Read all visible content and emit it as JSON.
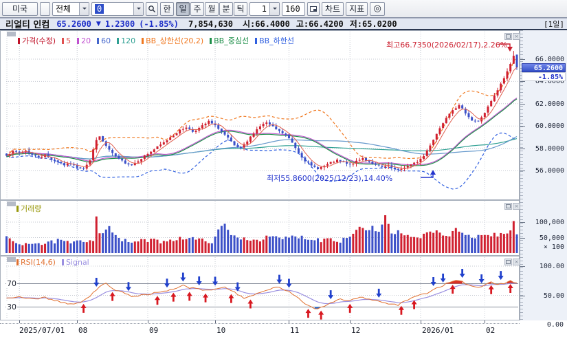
{
  "toolbar": {
    "market": "미국",
    "scope": "전체",
    "code_value": "0",
    "lang": "한",
    "period_tabs": [
      {
        "label": "일",
        "selected": true
      },
      {
        "label": "주",
        "selected": false
      },
      {
        "label": "월",
        "selected": false
      },
      {
        "label": "분",
        "selected": false
      },
      {
        "label": "틱",
        "selected": false
      }
    ],
    "interval": "1",
    "bar_count": "160",
    "chart": "차트",
    "indicator": "지표",
    "gear_icon": "◎"
  },
  "info_bar": {
    "name": "리얼티 인컴",
    "price": "65.2600",
    "down_arrow": "▼",
    "change": "1.2300",
    "change_pct": "(-1.85%)",
    "volume": "7,854,630",
    "open": "시:66.4000",
    "high": "고:66.4200",
    "low": "저:65.0200",
    "period_badge": "[1일]"
  },
  "main_pane": {
    "legend": [
      {
        "label": "가격(수정)",
        "color": "#c01228"
      },
      {
        "label": "5",
        "color": "#e05050"
      },
      {
        "label": "20",
        "color": "#c050d0"
      },
      {
        "label": "60",
        "color": "#4466cc"
      },
      {
        "label": "120",
        "color": "#2fa093"
      },
      {
        "label": "BB_상한선(20,2)",
        "color": "#f07820"
      },
      {
        "label": "BB_중심선",
        "color": "#1f8f4a"
      },
      {
        "label": "BB_하한선",
        "color": "#2f5fe0"
      }
    ],
    "high_annotation": "최고66.7350(2026/02/17),2.26%",
    "low_annotation": "최저55.8600(2025/12/23),14.40%",
    "price_marker": "65.2600",
    "pct_marker": "-1.85%",
    "y_ticks": [
      "66.0000",
      "64.0000",
      "62.0000",
      "60.0000",
      "58.0000",
      "56.0000"
    ]
  },
  "volume_pane": {
    "legend": [
      {
        "label": "거래량",
        "color": "#98980a"
      }
    ],
    "y_ticks": [
      "100,000",
      "50,000"
    ],
    "multiplier": "× 100"
  },
  "rsi_pane": {
    "legend": [
      {
        "label": "RSI(14,6)",
        "color": "#e07030"
      },
      {
        "label": "Signal",
        "color": "#9a8fe0"
      }
    ],
    "level_labels": [
      "70",
      "30"
    ],
    "y_ticks": [
      "100.00",
      "50.00",
      "0.00"
    ]
  },
  "chart_data": {
    "type": "candlestick",
    "title": "리얼티 인컴 일봉",
    "bar_count": 160,
    "x_ticks": [
      {
        "i": 4,
        "label": "2025/07/01"
      },
      {
        "i": 22,
        "label": "08"
      },
      {
        "i": 44,
        "label": "09"
      },
      {
        "i": 65,
        "label": "10"
      },
      {
        "i": 88,
        "label": "11"
      },
      {
        "i": 107,
        "label": "12"
      },
      {
        "i": 129,
        "label": "2026/01"
      },
      {
        "i": 149,
        "label": "02"
      }
    ],
    "price_axis_range": [
      55.2,
      67.4
    ],
    "price_gridlines": [
      66,
      64,
      62,
      60,
      58,
      56
    ],
    "close_keypoints": [
      [
        0,
        57.4
      ],
      [
        2,
        57.7
      ],
      [
        4,
        57.6
      ],
      [
        6,
        57.8
      ],
      [
        8,
        57.4
      ],
      [
        10,
        57.2
      ],
      [
        12,
        57.4
      ],
      [
        14,
        57.0
      ],
      [
        16,
        56.8
      ],
      [
        18,
        56.5
      ],
      [
        20,
        56.6
      ],
      [
        22,
        56.3
      ],
      [
        24,
        56.2
      ],
      [
        26,
        56.9
      ],
      [
        28,
        58.8
      ],
      [
        29,
        59.0
      ],
      [
        31,
        58.2
      ],
      [
        33,
        57.5
      ],
      [
        35,
        57.0
      ],
      [
        37,
        56.7
      ],
      [
        39,
        56.5
      ],
      [
        41,
        56.9
      ],
      [
        43,
        57.3
      ],
      [
        45,
        57.7
      ],
      [
        47,
        58.1
      ],
      [
        49,
        58.5
      ],
      [
        51,
        59.0
      ],
      [
        53,
        59.4
      ],
      [
        54,
        59.6
      ],
      [
        56,
        59.9
      ],
      [
        58,
        59.5
      ],
      [
        60,
        59.8
      ],
      [
        62,
        60.2
      ],
      [
        63,
        60.4
      ],
      [
        66,
        59.8
      ],
      [
        69,
        58.9
      ],
      [
        71,
        58.2
      ],
      [
        73,
        58.0
      ],
      [
        75,
        58.6
      ],
      [
        77,
        59.4
      ],
      [
        79,
        60.0
      ],
      [
        81,
        60.3
      ],
      [
        83,
        59.9
      ],
      [
        85,
        59.5
      ],
      [
        87,
        59.2
      ],
      [
        89,
        58.5
      ],
      [
        91,
        57.6
      ],
      [
        93,
        56.9
      ],
      [
        95,
        56.4
      ],
      [
        97,
        56.2
      ],
      [
        99,
        56.4
      ],
      [
        101,
        56.7
      ],
      [
        103,
        56.9
      ],
      [
        105,
        56.7
      ],
      [
        107,
        56.5
      ],
      [
        109,
        56.8
      ],
      [
        111,
        57.1
      ],
      [
        113,
        56.8
      ],
      [
        115,
        56.5
      ],
      [
        117,
        56.3
      ],
      [
        119,
        56.4
      ],
      [
        121,
        56.1
      ],
      [
        122,
        56.0
      ],
      [
        124,
        56.3
      ],
      [
        126,
        56.5
      ],
      [
        128,
        56.8
      ],
      [
        130,
        57.3
      ],
      [
        131,
        57.8
      ],
      [
        133,
        58.8
      ],
      [
        135,
        59.8
      ],
      [
        137,
        60.8
      ],
      [
        139,
        61.5
      ],
      [
        141,
        61.8
      ],
      [
        143,
        61.2
      ],
      [
        145,
        60.5
      ],
      [
        147,
        60.4
      ],
      [
        149,
        61.2
      ],
      [
        151,
        62.2
      ],
      [
        153,
        63.2
      ],
      [
        155,
        64.3
      ],
      [
        156,
        64.9
      ],
      [
        157,
        65.6
      ],
      [
        158,
        66.3
      ],
      [
        159,
        65.26
      ]
    ],
    "ohlc_overrides": [
      {
        "i": 122,
        "low": 55.86
      },
      {
        "i": 158,
        "high": 66.735
      },
      {
        "i": 159,
        "open": 66.4,
        "high": 66.42,
        "low": 65.02,
        "close": 65.26
      }
    ],
    "high_point": {
      "i": 158,
      "price": 66.735,
      "date": "2026/02/17",
      "pct": "2.26%"
    },
    "low_point": {
      "i": 122,
      "price": 55.86,
      "date": "2025/12/23",
      "pct": "14.40%"
    },
    "last_bar": {
      "open": 66.4,
      "high": 66.42,
      "low": 65.02,
      "close": 65.26,
      "change": -1.23,
      "change_pct": -1.85,
      "volume": 7854630
    },
    "moving_averages": [
      5,
      20,
      60,
      120
    ],
    "bollinger": {
      "period": 20,
      "mult": 2
    },
    "volume_gridlines": [
      50000,
      100000
    ],
    "volume_multiplier": 100,
    "volume_keypoints": [
      [
        0,
        48000
      ],
      [
        4,
        30000
      ],
      [
        8,
        35000
      ],
      [
        12,
        28000
      ],
      [
        16,
        40000
      ],
      [
        20,
        32000
      ],
      [
        24,
        38000
      ],
      [
        27,
        45000
      ],
      [
        28,
        125000
      ],
      [
        29,
        60000
      ],
      [
        31,
        80000
      ],
      [
        32,
        88000
      ],
      [
        34,
        52000
      ],
      [
        36,
        40000
      ],
      [
        40,
        36000
      ],
      [
        44,
        42000
      ],
      [
        48,
        38000
      ],
      [
        52,
        45000
      ],
      [
        56,
        50000
      ],
      [
        60,
        42000
      ],
      [
        64,
        38000
      ],
      [
        66,
        70000
      ],
      [
        68,
        95000
      ],
      [
        70,
        55000
      ],
      [
        74,
        48000
      ],
      [
        78,
        42000
      ],
      [
        82,
        52000
      ],
      [
        86,
        46000
      ],
      [
        90,
        55000
      ],
      [
        94,
        48000
      ],
      [
        98,
        42000
      ],
      [
        100,
        50000
      ],
      [
        102,
        44000
      ],
      [
        104,
        40000
      ],
      [
        106,
        52000
      ],
      [
        108,
        60000
      ],
      [
        110,
        88000
      ],
      [
        112,
        75000
      ],
      [
        114,
        82000
      ],
      [
        116,
        65000
      ],
      [
        118,
        120000
      ],
      [
        120,
        58000
      ],
      [
        122,
        70000
      ],
      [
        124,
        55000
      ],
      [
        126,
        48000
      ],
      [
        128,
        52000
      ],
      [
        130,
        58000
      ],
      [
        132,
        65000
      ],
      [
        134,
        72000
      ],
      [
        136,
        60000
      ],
      [
        138,
        55000
      ],
      [
        140,
        75000
      ],
      [
        142,
        62000
      ],
      [
        144,
        58000
      ],
      [
        146,
        52000
      ],
      [
        148,
        60000
      ],
      [
        150,
        55000
      ],
      [
        152,
        62000
      ],
      [
        154,
        58000
      ],
      [
        156,
        65000
      ],
      [
        157,
        72000
      ],
      [
        158,
        100000
      ],
      [
        159,
        62000
      ]
    ],
    "rsi_levels": [
      70,
      30
    ],
    "rsi_axis_range": [
      0,
      100
    ],
    "rsi_gridlines": [
      100,
      50
    ],
    "rsi_keypoints": [
      [
        0,
        45
      ],
      [
        4,
        48
      ],
      [
        8,
        44
      ],
      [
        12,
        46
      ],
      [
        16,
        40
      ],
      [
        20,
        34
      ],
      [
        23,
        38
      ],
      [
        26,
        48
      ],
      [
        29,
        66
      ],
      [
        31,
        72
      ],
      [
        33,
        62
      ],
      [
        36,
        55
      ],
      [
        38,
        50
      ],
      [
        40,
        48
      ],
      [
        44,
        52
      ],
      [
        48,
        55
      ],
      [
        52,
        60
      ],
      [
        55,
        67
      ],
      [
        57,
        63
      ],
      [
        60,
        60
      ],
      [
        63,
        58
      ],
      [
        66,
        62
      ],
      [
        68,
        64
      ],
      [
        71,
        55
      ],
      [
        74,
        46
      ],
      [
        77,
        50
      ],
      [
        80,
        56
      ],
      [
        83,
        62
      ],
      [
        85,
        64
      ],
      [
        88,
        56
      ],
      [
        90,
        48
      ],
      [
        93,
        36
      ],
      [
        95,
        30
      ],
      [
        97,
        27
      ],
      [
        99,
        32
      ],
      [
        102,
        40
      ],
      [
        104,
        44
      ],
      [
        107,
        41
      ],
      [
        110,
        47
      ],
      [
        113,
        44
      ],
      [
        116,
        39
      ],
      [
        119,
        36
      ],
      [
        122,
        33
      ],
      [
        124,
        40
      ],
      [
        126,
        45
      ],
      [
        128,
        48
      ],
      [
        131,
        54
      ],
      [
        134,
        62
      ],
      [
        137,
        70
      ],
      [
        139,
        75
      ],
      [
        141,
        76
      ],
      [
        143,
        70
      ],
      [
        145,
        65
      ],
      [
        147,
        63
      ],
      [
        149,
        68
      ],
      [
        151,
        72
      ],
      [
        153,
        69
      ],
      [
        155,
        71
      ],
      [
        157,
        74
      ],
      [
        159,
        71
      ]
    ],
    "signal_smoothing": 6,
    "buy_arrows": [
      24,
      33,
      47,
      52,
      57,
      62,
      70,
      76,
      94,
      98,
      107,
      123,
      127,
      139,
      151,
      157
    ],
    "sell_arrows": [
      28,
      38,
      50,
      55,
      60,
      65,
      72,
      85,
      88,
      101,
      116,
      133,
      136,
      142,
      148,
      154
    ],
    "colors": {
      "up": "#d02030",
      "down": "#3c50c8",
      "ma5": "#e06050",
      "ma20": "#c050d0",
      "ma60": "#6699cc",
      "ma120": "#2fa093",
      "bb_upper": "#f07820",
      "bb_mid": "#1f8f4a",
      "bb_lower": "#2f5fe0",
      "rsi": "#e07030",
      "signal": "#9a8fe0",
      "grid": "#c6cad2",
      "overbought_fill": "#d93025",
      "oversold_fill": "#2f6fd0",
      "annotation_high": "#cc2030",
      "annotation_low": "#2233cc"
    }
  }
}
